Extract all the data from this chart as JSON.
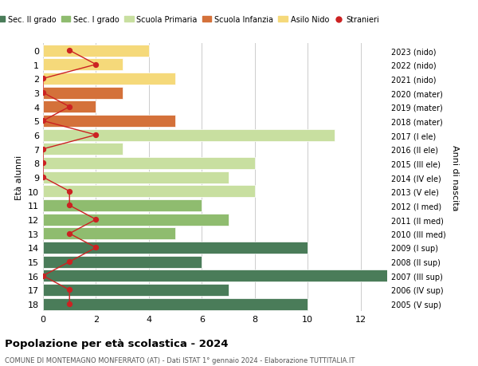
{
  "ages": [
    18,
    17,
    16,
    15,
    14,
    13,
    12,
    11,
    10,
    9,
    8,
    7,
    6,
    5,
    4,
    3,
    2,
    1,
    0
  ],
  "right_labels": [
    "2005 (V sup)",
    "2006 (IV sup)",
    "2007 (III sup)",
    "2008 (II sup)",
    "2009 (I sup)",
    "2010 (III med)",
    "2011 (II med)",
    "2012 (I med)",
    "2013 (V ele)",
    "2014 (IV ele)",
    "2015 (III ele)",
    "2016 (II ele)",
    "2017 (I ele)",
    "2018 (mater)",
    "2019 (mater)",
    "2020 (mater)",
    "2021 (nido)",
    "2022 (nido)",
    "2023 (nido)"
  ],
  "bar_values": [
    10,
    7,
    13,
    6,
    10,
    5,
    7,
    6,
    8,
    7,
    8,
    3,
    11,
    5,
    2,
    3,
    5,
    3,
    4
  ],
  "bar_colors": [
    "#4a7c59",
    "#4a7c59",
    "#4a7c59",
    "#4a7c59",
    "#4a7c59",
    "#8fbc6f",
    "#8fbc6f",
    "#8fbc6f",
    "#c8dfa0",
    "#c8dfa0",
    "#c8dfa0",
    "#c8dfa0",
    "#c8dfa0",
    "#d4713a",
    "#d4713a",
    "#d4713a",
    "#f5d97a",
    "#f5d97a",
    "#f5d97a"
  ],
  "stranieri_x": [
    1,
    1,
    0,
    1,
    2,
    1,
    2,
    1,
    1,
    0,
    0,
    0,
    2,
    0,
    1,
    0,
    0,
    2,
    1
  ],
  "title": "Popolazione per età scolastica - 2024",
  "subtitle": "COMUNE DI MONTEMAGNO MONFERRATO (AT) - Dati ISTAT 1° gennaio 2024 - Elaborazione TUTTITALIA.IT",
  "ylabel": "Età alunni",
  "y2label": "Anni di nascita",
  "xlim": [
    0,
    13
  ],
  "xticks": [
    0,
    2,
    4,
    6,
    8,
    10,
    12
  ],
  "legend_items": [
    {
      "label": "Sec. II grado",
      "color": "#4a7c59"
    },
    {
      "label": "Sec. I grado",
      "color": "#8fbc6f"
    },
    {
      "label": "Scuola Primaria",
      "color": "#c8dfa0"
    },
    {
      "label": "Scuola Infanzia",
      "color": "#d4713a"
    },
    {
      "label": "Asilo Nido",
      "color": "#f5d97a"
    },
    {
      "label": "Stranieri",
      "color": "#cc2222"
    }
  ],
  "background_color": "#ffffff",
  "grid_color": "#cccccc",
  "bar_height": 0.85,
  "stranieri_color": "#cc2222"
}
